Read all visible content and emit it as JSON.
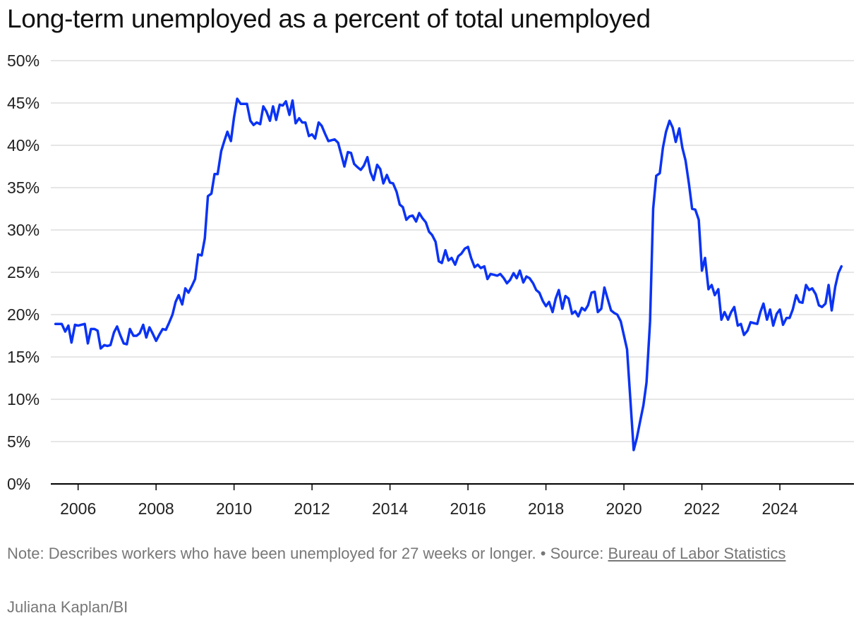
{
  "title": "Long-term unemployed as a percent of total unemployed",
  "note": {
    "text": "Note: Describes workers who have been unemployed for 27 weeks or longer.",
    "separator": " • ",
    "source_prefix": "Source: ",
    "source_link": "Bureau of Labor Statistics"
  },
  "credit": "Juliana Kaplan/BI",
  "colors": {
    "line": "#0a33f5",
    "grid": "#dddddd",
    "axis": "#000000"
  },
  "chart_data": {
    "type": "line",
    "title": "Long-term unemployed as a percent of total unemployed",
    "xlabel": "",
    "ylabel": "",
    "xlim": [
      2005.3,
      2025.9
    ],
    "ylim": [
      0,
      50
    ],
    "y_ticks": [
      0,
      5,
      10,
      15,
      20,
      25,
      30,
      35,
      40,
      45,
      50
    ],
    "y_tick_labels": [
      "0%",
      "5%",
      "10%",
      "15%",
      "20%",
      "25%",
      "30%",
      "35%",
      "40%",
      "45%",
      "50%"
    ],
    "x_ticks": [
      2006,
      2008,
      2010,
      2012,
      2014,
      2016,
      2018,
      2020,
      2022,
      2024
    ],
    "x_tick_labels": [
      "2006",
      "2008",
      "2010",
      "2012",
      "2014",
      "2016",
      "2018",
      "2020",
      "2022",
      "2024"
    ],
    "grid": true,
    "legend": "none",
    "series": [
      {
        "points": [
          [
            2005.42,
            18.9
          ],
          [
            2005.58,
            18.9
          ],
          [
            2005.67,
            18.0
          ],
          [
            2005.75,
            18.7
          ],
          [
            2005.83,
            16.7
          ],
          [
            2005.92,
            18.8
          ],
          [
            2006.0,
            18.7
          ],
          [
            2006.17,
            18.9
          ],
          [
            2006.25,
            16.6
          ],
          [
            2006.33,
            18.3
          ],
          [
            2006.42,
            18.3
          ],
          [
            2006.5,
            18.1
          ],
          [
            2006.58,
            16.0
          ],
          [
            2006.67,
            16.4
          ],
          [
            2006.75,
            16.3
          ],
          [
            2006.83,
            16.4
          ],
          [
            2006.92,
            17.9
          ],
          [
            2007.0,
            18.6
          ],
          [
            2007.08,
            17.6
          ],
          [
            2007.17,
            16.6
          ],
          [
            2007.25,
            16.5
          ],
          [
            2007.33,
            18.3
          ],
          [
            2007.42,
            17.5
          ],
          [
            2007.5,
            17.5
          ],
          [
            2007.58,
            17.8
          ],
          [
            2007.67,
            18.8
          ],
          [
            2007.75,
            17.3
          ],
          [
            2007.83,
            18.5
          ],
          [
            2007.92,
            17.7
          ],
          [
            2008.0,
            16.9
          ],
          [
            2008.08,
            17.6
          ],
          [
            2008.17,
            18.3
          ],
          [
            2008.25,
            18.2
          ],
          [
            2008.33,
            19.0
          ],
          [
            2008.42,
            20.0
          ],
          [
            2008.5,
            21.5
          ],
          [
            2008.58,
            22.3
          ],
          [
            2008.67,
            21.2
          ],
          [
            2008.75,
            23.1
          ],
          [
            2008.83,
            22.6
          ],
          [
            2008.92,
            23.4
          ],
          [
            2009.0,
            24.2
          ],
          [
            2009.08,
            27.1
          ],
          [
            2009.17,
            27.0
          ],
          [
            2009.25,
            29.0
          ],
          [
            2009.33,
            34.0
          ],
          [
            2009.42,
            34.3
          ],
          [
            2009.5,
            36.6
          ],
          [
            2009.58,
            36.6
          ],
          [
            2009.67,
            39.3
          ],
          [
            2009.75,
            40.5
          ],
          [
            2009.83,
            41.6
          ],
          [
            2009.92,
            40.5
          ],
          [
            2010.0,
            43.3
          ],
          [
            2010.08,
            45.5
          ],
          [
            2010.17,
            44.9
          ],
          [
            2010.25,
            44.9
          ],
          [
            2010.33,
            44.9
          ],
          [
            2010.42,
            42.9
          ],
          [
            2010.5,
            42.4
          ],
          [
            2010.58,
            42.7
          ],
          [
            2010.67,
            42.5
          ],
          [
            2010.75,
            44.6
          ],
          [
            2010.83,
            44.0
          ],
          [
            2010.92,
            42.9
          ],
          [
            2011.0,
            44.6
          ],
          [
            2011.08,
            43.0
          ],
          [
            2011.17,
            44.8
          ],
          [
            2011.25,
            44.7
          ],
          [
            2011.33,
            45.2
          ],
          [
            2011.42,
            43.6
          ],
          [
            2011.5,
            45.3
          ],
          [
            2011.58,
            42.6
          ],
          [
            2011.67,
            43.2
          ],
          [
            2011.75,
            42.7
          ],
          [
            2011.83,
            42.7
          ],
          [
            2011.92,
            41.1
          ],
          [
            2012.0,
            41.3
          ],
          [
            2012.08,
            40.8
          ],
          [
            2012.17,
            42.7
          ],
          [
            2012.25,
            42.3
          ],
          [
            2012.33,
            41.4
          ],
          [
            2012.42,
            40.5
          ],
          [
            2012.5,
            40.6
          ],
          [
            2012.58,
            40.7
          ],
          [
            2012.67,
            40.3
          ],
          [
            2012.75,
            38.9
          ],
          [
            2012.83,
            37.5
          ],
          [
            2012.92,
            39.2
          ],
          [
            2013.0,
            39.1
          ],
          [
            2013.08,
            37.8
          ],
          [
            2013.17,
            37.4
          ],
          [
            2013.25,
            37.1
          ],
          [
            2013.33,
            37.6
          ],
          [
            2013.42,
            38.6
          ],
          [
            2013.5,
            36.8
          ],
          [
            2013.58,
            35.9
          ],
          [
            2013.67,
            37.7
          ],
          [
            2013.75,
            37.2
          ],
          [
            2013.83,
            35.5
          ],
          [
            2013.92,
            36.5
          ],
          [
            2014.0,
            35.6
          ],
          [
            2014.08,
            35.5
          ],
          [
            2014.17,
            34.5
          ],
          [
            2014.25,
            33.0
          ],
          [
            2014.33,
            32.7
          ],
          [
            2014.42,
            31.2
          ],
          [
            2014.5,
            31.6
          ],
          [
            2014.58,
            31.7
          ],
          [
            2014.67,
            31.0
          ],
          [
            2014.75,
            32.0
          ],
          [
            2014.83,
            31.4
          ],
          [
            2014.92,
            30.9
          ],
          [
            2015.0,
            29.8
          ],
          [
            2015.08,
            29.4
          ],
          [
            2015.17,
            28.6
          ],
          [
            2015.25,
            26.3
          ],
          [
            2015.33,
            26.1
          ],
          [
            2015.42,
            27.6
          ],
          [
            2015.5,
            26.4
          ],
          [
            2015.58,
            26.7
          ],
          [
            2015.67,
            25.9
          ],
          [
            2015.75,
            26.9
          ],
          [
            2015.83,
            27.2
          ],
          [
            2015.92,
            27.8
          ],
          [
            2016.0,
            28.0
          ],
          [
            2016.08,
            26.7
          ],
          [
            2016.17,
            25.6
          ],
          [
            2016.25,
            25.9
          ],
          [
            2016.33,
            25.5
          ],
          [
            2016.42,
            25.7
          ],
          [
            2016.5,
            24.2
          ],
          [
            2016.58,
            24.8
          ],
          [
            2016.67,
            24.7
          ],
          [
            2016.75,
            24.6
          ],
          [
            2016.83,
            24.8
          ],
          [
            2016.92,
            24.3
          ],
          [
            2017.0,
            23.7
          ],
          [
            2017.08,
            24.1
          ],
          [
            2017.17,
            24.9
          ],
          [
            2017.25,
            24.3
          ],
          [
            2017.33,
            25.2
          ],
          [
            2017.42,
            23.8
          ],
          [
            2017.5,
            24.5
          ],
          [
            2017.58,
            24.3
          ],
          [
            2017.67,
            23.7
          ],
          [
            2017.75,
            22.9
          ],
          [
            2017.83,
            22.6
          ],
          [
            2017.92,
            21.6
          ],
          [
            2018.0,
            21.0
          ],
          [
            2018.08,
            21.5
          ],
          [
            2018.17,
            20.3
          ],
          [
            2018.25,
            21.9
          ],
          [
            2018.33,
            22.9
          ],
          [
            2018.42,
            20.7
          ],
          [
            2018.5,
            22.2
          ],
          [
            2018.58,
            21.9
          ],
          [
            2018.67,
            20.1
          ],
          [
            2018.75,
            20.4
          ],
          [
            2018.83,
            19.8
          ],
          [
            2018.92,
            20.8
          ],
          [
            2019.0,
            20.5
          ],
          [
            2019.08,
            21.1
          ],
          [
            2019.17,
            22.6
          ],
          [
            2019.25,
            22.7
          ],
          [
            2019.33,
            20.3
          ],
          [
            2019.42,
            20.7
          ],
          [
            2019.5,
            23.2
          ],
          [
            2019.58,
            21.9
          ],
          [
            2019.67,
            20.5
          ],
          [
            2019.75,
            20.2
          ],
          [
            2019.83,
            20.0
          ],
          [
            2019.92,
            19.2
          ],
          [
            2020.08,
            15.9
          ],
          [
            2020.25,
            4.0
          ],
          [
            2020.33,
            5.4
          ],
          [
            2020.42,
            7.5
          ],
          [
            2020.5,
            9.3
          ],
          [
            2020.58,
            12.0
          ],
          [
            2020.67,
            19.2
          ],
          [
            2020.75,
            32.5
          ],
          [
            2020.83,
            36.4
          ],
          [
            2020.92,
            36.7
          ],
          [
            2021.0,
            39.7
          ],
          [
            2021.08,
            41.6
          ],
          [
            2021.17,
            42.9
          ],
          [
            2021.25,
            42.1
          ],
          [
            2021.33,
            40.4
          ],
          [
            2021.42,
            42.0
          ],
          [
            2021.5,
            39.7
          ],
          [
            2021.58,
            38.2
          ],
          [
            2021.67,
            35.4
          ],
          [
            2021.75,
            32.5
          ],
          [
            2021.83,
            32.4
          ],
          [
            2021.92,
            31.2
          ],
          [
            2022.0,
            25.2
          ],
          [
            2022.08,
            26.7
          ],
          [
            2022.17,
            23.0
          ],
          [
            2022.25,
            23.5
          ],
          [
            2022.33,
            22.3
          ],
          [
            2022.42,
            23.0
          ],
          [
            2022.5,
            19.4
          ],
          [
            2022.58,
            20.3
          ],
          [
            2022.67,
            19.4
          ],
          [
            2022.75,
            20.3
          ],
          [
            2022.83,
            20.9
          ],
          [
            2022.92,
            18.7
          ],
          [
            2023.0,
            18.9
          ],
          [
            2023.08,
            17.6
          ],
          [
            2023.17,
            18.1
          ],
          [
            2023.25,
            19.1
          ],
          [
            2023.33,
            19.0
          ],
          [
            2023.42,
            18.9
          ],
          [
            2023.5,
            20.3
          ],
          [
            2023.58,
            21.3
          ],
          [
            2023.67,
            19.4
          ],
          [
            2023.75,
            20.6
          ],
          [
            2023.83,
            18.7
          ],
          [
            2023.92,
            20.1
          ],
          [
            2024.0,
            20.6
          ],
          [
            2024.08,
            18.8
          ],
          [
            2024.17,
            19.6
          ],
          [
            2024.25,
            19.6
          ],
          [
            2024.33,
            20.6
          ],
          [
            2024.42,
            22.3
          ],
          [
            2024.5,
            21.5
          ],
          [
            2024.58,
            21.4
          ],
          [
            2024.67,
            23.5
          ],
          [
            2024.75,
            22.9
          ],
          [
            2024.83,
            23.1
          ],
          [
            2024.92,
            22.4
          ],
          [
            2025.0,
            21.1
          ],
          [
            2025.08,
            20.9
          ],
          [
            2025.17,
            21.3
          ],
          [
            2025.25,
            23.5
          ],
          [
            2025.33,
            20.5
          ],
          [
            2025.42,
            23.3
          ],
          [
            2025.5,
            24.9
          ],
          [
            2025.58,
            25.7
          ]
        ]
      }
    ]
  }
}
